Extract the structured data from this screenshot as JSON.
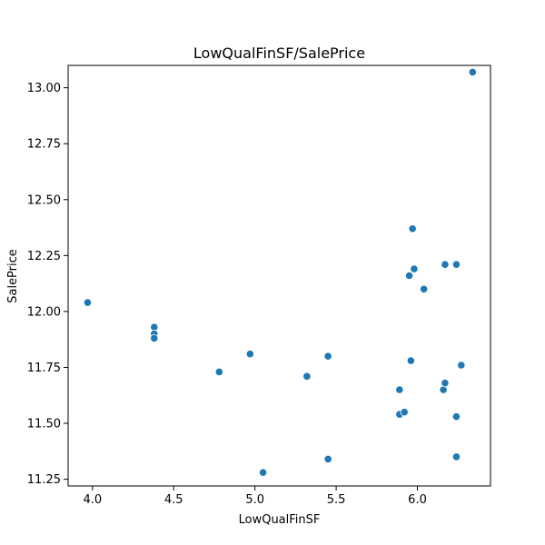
{
  "chart_data": {
    "type": "scatter",
    "title": "LowQualFinSF/SalePrice",
    "xlabel": "LowQualFinSF",
    "ylabel": "SalePrice",
    "xlim": [
      3.85,
      6.45
    ],
    "ylim": [
      11.22,
      13.1
    ],
    "xticks": [
      4.0,
      4.5,
      5.0,
      5.5,
      6.0
    ],
    "xtick_labels": [
      "4.0",
      "4.5",
      "5.0",
      "5.5",
      "6.0"
    ],
    "yticks": [
      11.25,
      11.5,
      11.75,
      12.0,
      12.25,
      12.5,
      12.75,
      13.0
    ],
    "ytick_labels": [
      "11.25",
      "11.50",
      "11.75",
      "12.00",
      "12.25",
      "12.50",
      "12.75",
      "13.00"
    ],
    "grid": false,
    "marker_color": "#1f77b4",
    "points": [
      {
        "x": 3.97,
        "y": 12.04
      },
      {
        "x": 4.38,
        "y": 11.93
      },
      {
        "x": 4.38,
        "y": 11.9
      },
      {
        "x": 4.38,
        "y": 11.88
      },
      {
        "x": 4.78,
        "y": 11.73
      },
      {
        "x": 4.97,
        "y": 11.81
      },
      {
        "x": 5.05,
        "y": 11.28
      },
      {
        "x": 5.32,
        "y": 11.71
      },
      {
        "x": 5.45,
        "y": 11.8
      },
      {
        "x": 5.45,
        "y": 11.34
      },
      {
        "x": 5.89,
        "y": 11.65
      },
      {
        "x": 5.89,
        "y": 11.54
      },
      {
        "x": 5.92,
        "y": 11.55
      },
      {
        "x": 5.95,
        "y": 12.16
      },
      {
        "x": 5.96,
        "y": 11.78
      },
      {
        "x": 5.97,
        "y": 12.37
      },
      {
        "x": 5.98,
        "y": 12.19
      },
      {
        "x": 6.04,
        "y": 12.1
      },
      {
        "x": 6.16,
        "y": 11.65
      },
      {
        "x": 6.17,
        "y": 12.21
      },
      {
        "x": 6.17,
        "y": 11.68
      },
      {
        "x": 6.24,
        "y": 12.21
      },
      {
        "x": 6.24,
        "y": 11.53
      },
      {
        "x": 6.24,
        "y": 11.35
      },
      {
        "x": 6.27,
        "y": 11.76
      },
      {
        "x": 6.34,
        "y": 13.07
      }
    ]
  }
}
